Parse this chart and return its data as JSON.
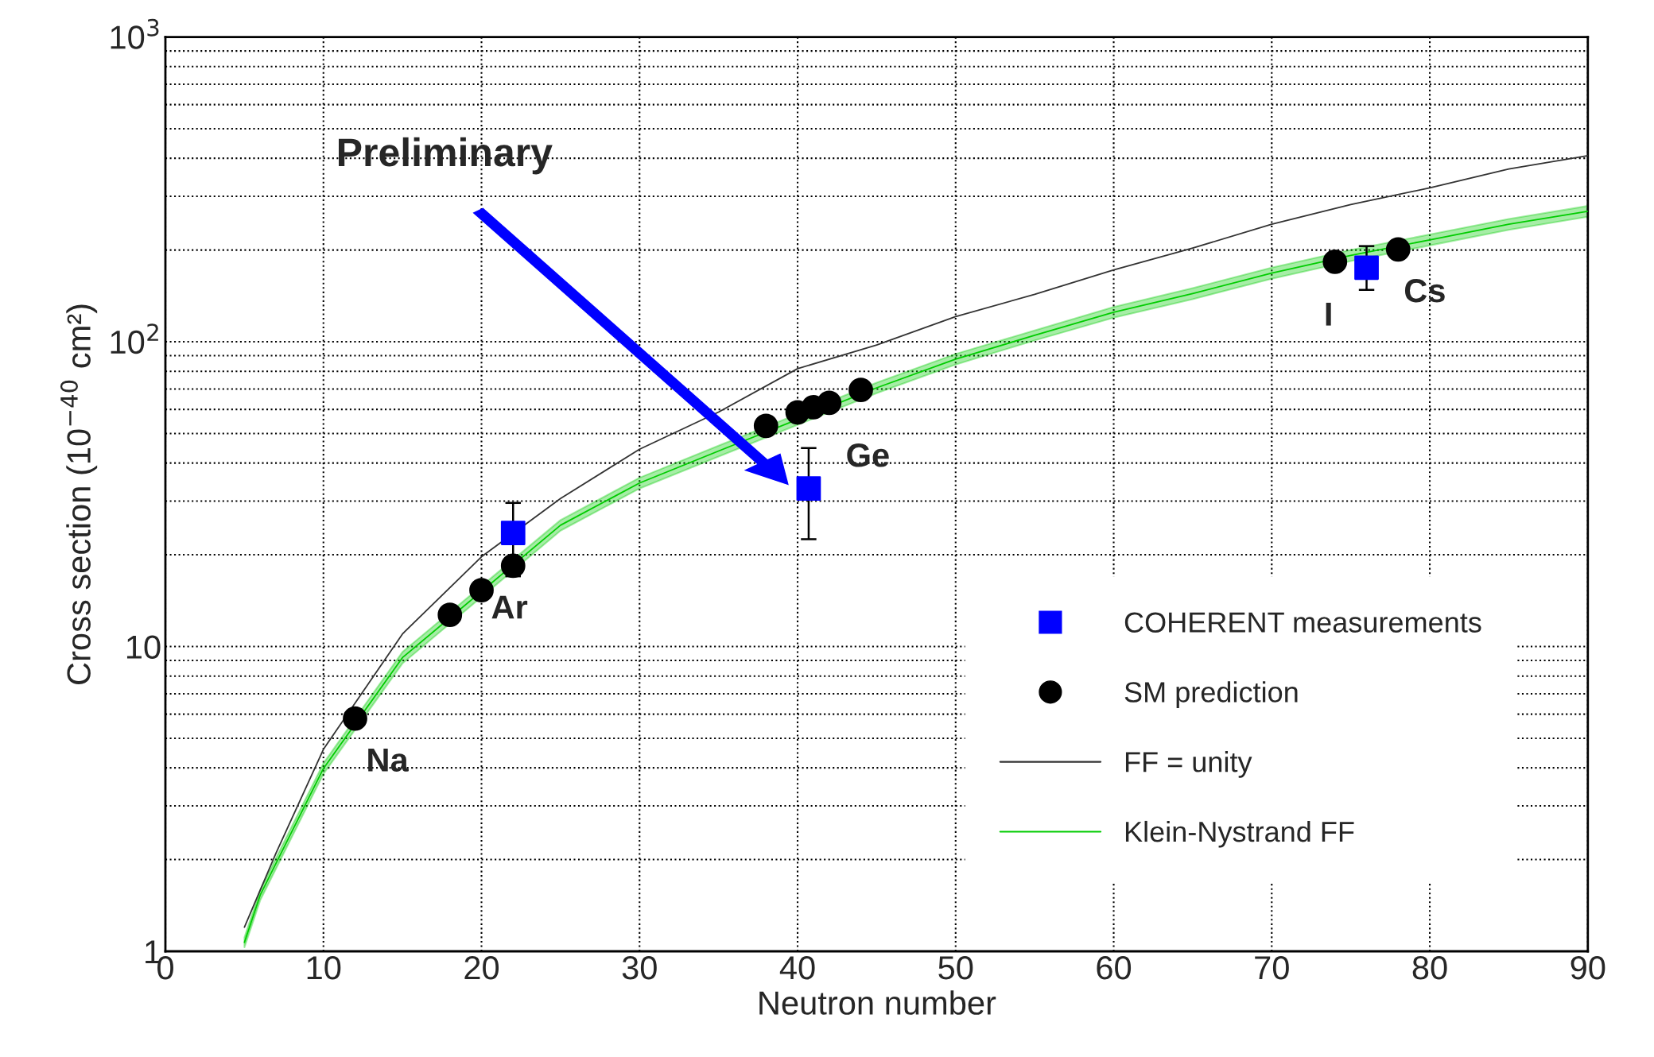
{
  "chart_data": {
    "type": "scatter",
    "xlabel": "Neutron number",
    "ylabel": "Cross section (10$^{−40}$ cm²)",
    "log": "y",
    "xlim": [
      0,
      90
    ],
    "xticks": [
      0,
      10,
      20,
      30,
      40,
      50,
      60,
      70,
      80,
      90
    ],
    "ylim": [
      1,
      1000
    ],
    "yticks": [
      1,
      10,
      {
        "value": 100,
        "label": "10$^{2}$"
      },
      {
        "value": 1000,
        "label": "10$^{3}$"
      }
    ],
    "grid": true,
    "legend": "bottom right",
    "series": [
      {
        "name": "COHERENT measurements",
        "color": "#0000ff",
        "marker": "square",
        "x": [
          22,
          40.7,
          76
        ],
        "values": [
          23.6,
          33,
          175
        ],
        "errors": [
          [
            17,
            29.6
          ],
          [
            22.5,
            44.8
          ],
          [
            148,
            206
          ]
        ]
      },
      {
        "name": "SM prediction",
        "color": "#000000",
        "marker": "circle",
        "x": [
          12,
          18,
          20,
          22,
          38,
          40,
          41,
          42,
          44,
          74,
          78
        ],
        "values": [
          5.8,
          12.7,
          15.3,
          18.4,
          53,
          58.7,
          61,
          63,
          69.5,
          183,
          201
        ]
      },
      {
        "name": "FF = unity",
        "type": "line",
        "color": "#333333",
        "marker": "none",
        "line_style": "solid",
        "x": [
          5,
          7,
          10,
          15,
          20,
          25,
          30,
          35,
          40,
          45,
          50,
          55,
          60,
          65,
          70,
          75,
          80,
          85,
          90
        ],
        "values": [
          1.2,
          2.1,
          4.6,
          11,
          19.7,
          30.6,
          44.4,
          58.8,
          81.6,
          97.6,
          121,
          143,
          172,
          203,
          243,
          282,
          320,
          369,
          408
        ]
      },
      {
        "name": "Klein-Nystrand FF",
        "type": "line",
        "color": "#00cc00",
        "marker": "none",
        "line_style": "solid",
        "x": [
          5,
          6,
          8,
          10,
          15,
          25,
          30,
          35,
          45,
          50,
          55,
          60,
          65,
          70,
          75,
          80,
          85,
          90
        ],
        "values": [
          1.07,
          1.53,
          2.47,
          3.98,
          9.2,
          25,
          34.4,
          43.8,
          70.6,
          87.7,
          105,
          125,
          144,
          168,
          192,
          216,
          243,
          268
        ],
        "lower": [
          1.03,
          1.47,
          2.37,
          3.82,
          8.8,
          24,
          33,
          42,
          67.8,
          84.2,
          101,
          120,
          138,
          161,
          184,
          207,
          233,
          257
        ],
        "upper": [
          1.11,
          1.59,
          2.57,
          4.14,
          9.6,
          26,
          35.8,
          45.6,
          73.4,
          91.2,
          109,
          130,
          150,
          175,
          200,
          225,
          253,
          279
        ]
      }
    ],
    "annotations": [
      {
        "text": "Na",
        "x": 12,
        "y": 5.8
      },
      {
        "text": "Ar",
        "x": 22,
        "y": 18.4
      },
      {
        "text": "Ge",
        "x": 42,
        "y": 63
      },
      {
        "text": "I",
        "x": 74,
        "y": 183
      },
      {
        "text": "Cs",
        "x": 78,
        "y": 201
      },
      "Preliminary"
    ]
  }
}
